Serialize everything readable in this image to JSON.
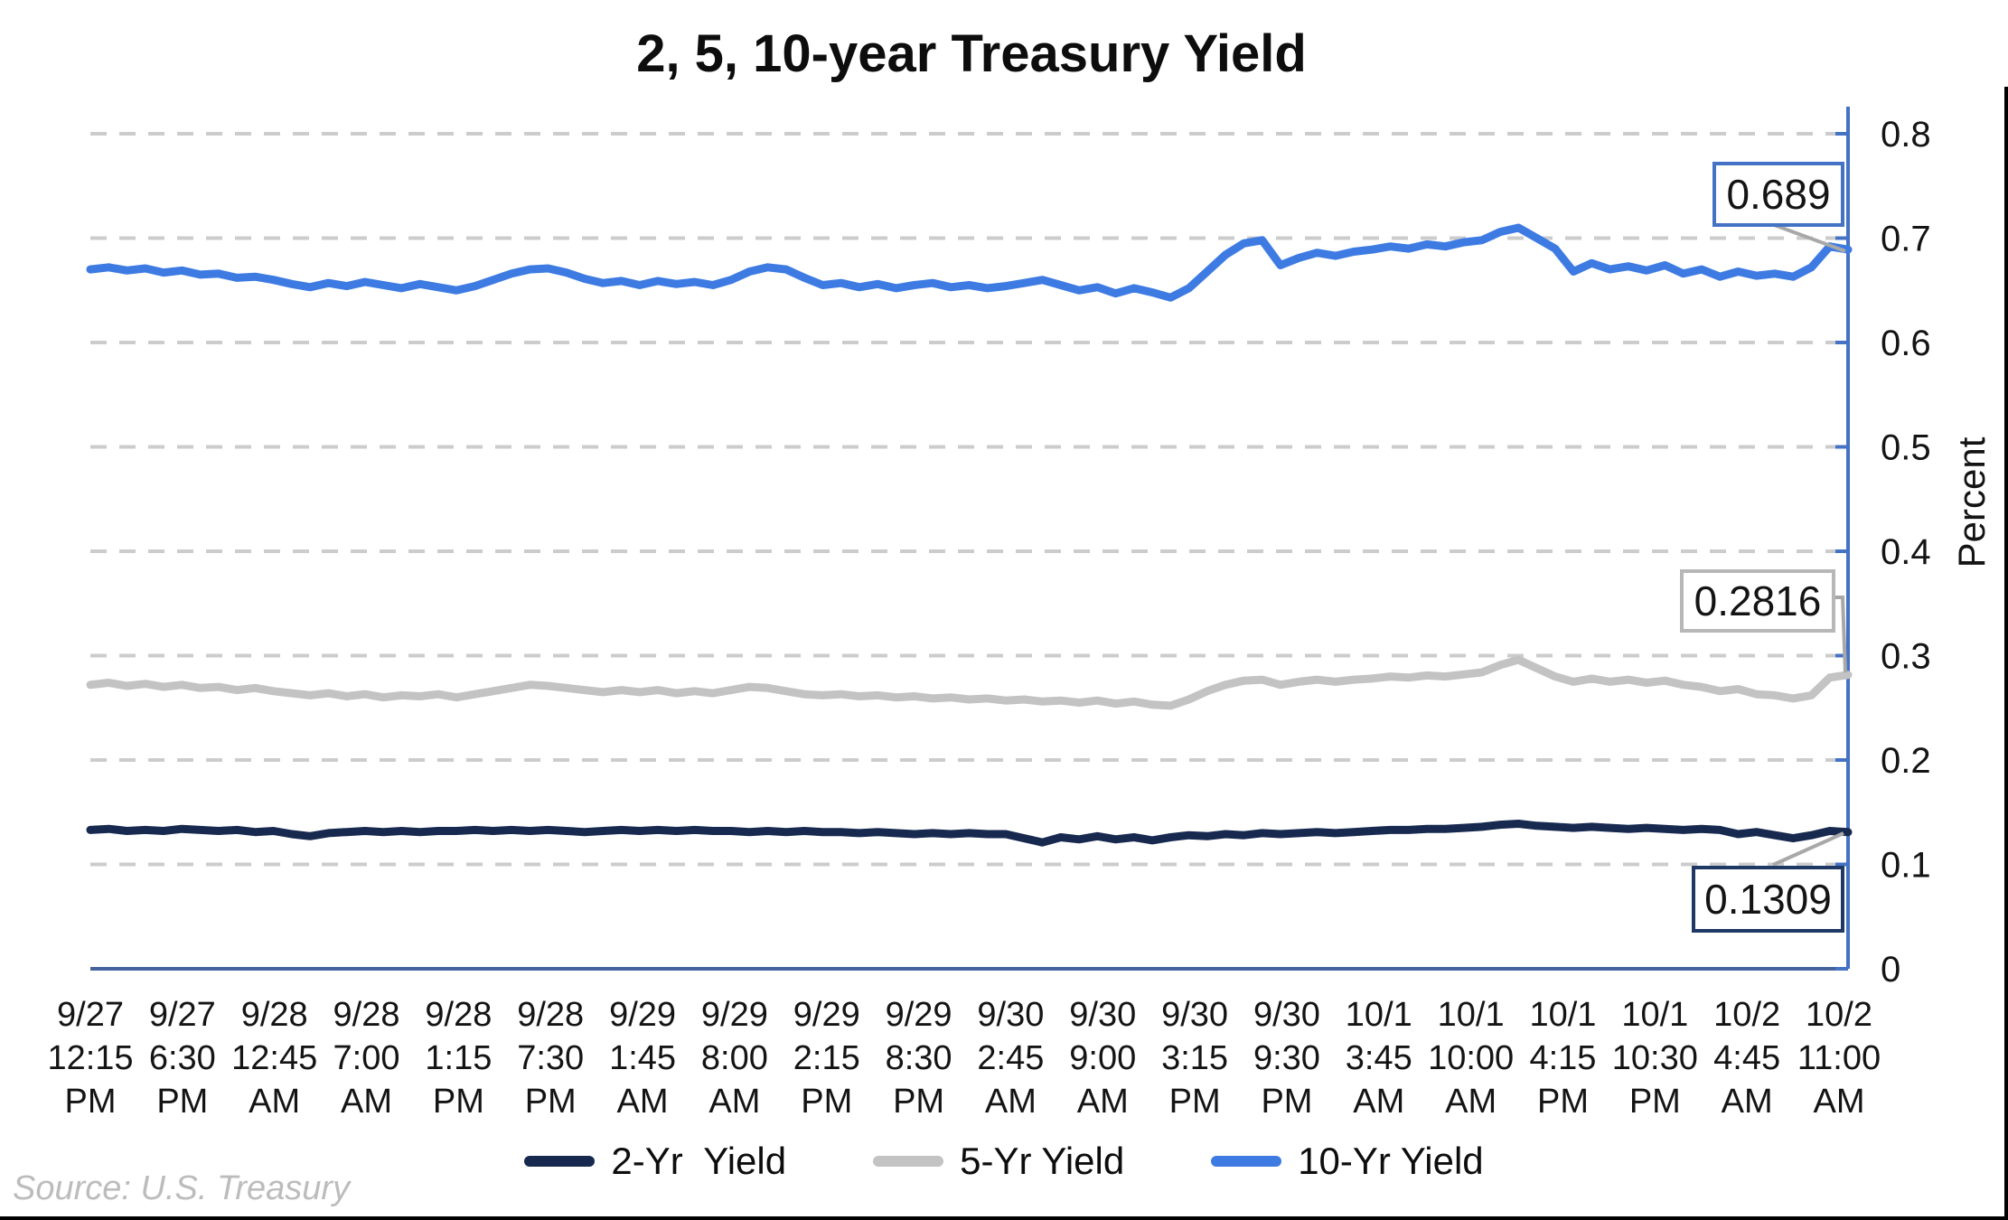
{
  "title": "2, 5, 10-year Treasury Yield",
  "source": "Source: U.S. Treasury",
  "colors": {
    "gridline": "#cccccc",
    "axis_right": "#4472c4",
    "axis_bottom": "#44639c",
    "leader_line": "#a8a8a8",
    "series_2yr": "#17294f",
    "series_5yr": "#c3c3c3",
    "series_10yr": "#3d7be3"
  },
  "chart_data": {
    "type": "line",
    "title": "2, 5, 10-year Treasury Yield",
    "xlabel": "",
    "ylabel": "Percent",
    "ylim": [
      0,
      0.8
    ],
    "yticks": [
      "0",
      "0.1",
      "0.2",
      "0.3",
      "0.4",
      "0.5",
      "0.6",
      "0.7",
      "0.8"
    ],
    "grid": "horizontal dashed",
    "legend_position": "bottom",
    "x_labels": [
      "9/27\n12:15\nPM",
      "9/27\n6:30\nPM",
      "9/28\n12:45\nAM",
      "9/28\n7:00\nAM",
      "9/28\n1:15\nPM",
      "9/28\n7:30\nPM",
      "9/29\n1:45\nAM",
      "9/29\n8:00\nAM",
      "9/29\n2:15\nPM",
      "9/29\n8:30\nPM",
      "9/30\n2:45\nAM",
      "9/30\n9:00\nAM",
      "9/30\n3:15\nPM",
      "9/30\n9:30\nPM",
      "10/1\n3:45\nAM",
      "10/1\n10:00\nAM",
      "10/1\n4:15\nPM",
      "10/1\n10:30\nPM",
      "10/2\n4:45\nAM",
      "10/2\n11:00\nAM"
    ],
    "series": [
      {
        "name": "2-Yr  Yield",
        "color": "#17294f",
        "last_value": 0.1309,
        "values": [
          0.133,
          0.134,
          0.132,
          0.133,
          0.132,
          0.134,
          0.133,
          0.132,
          0.133,
          0.131,
          0.132,
          0.129,
          0.127,
          0.13,
          0.131,
          0.132,
          0.131,
          0.132,
          0.131,
          0.132,
          0.132,
          0.133,
          0.132,
          0.133,
          0.132,
          0.133,
          0.132,
          0.131,
          0.132,
          0.133,
          0.132,
          0.133,
          0.132,
          0.133,
          0.132,
          0.132,
          0.131,
          0.132,
          0.131,
          0.132,
          0.131,
          0.131,
          0.13,
          0.131,
          0.13,
          0.129,
          0.13,
          0.129,
          0.13,
          0.129,
          0.129,
          0.125,
          0.121,
          0.126,
          0.124,
          0.127,
          0.124,
          0.126,
          0.123,
          0.126,
          0.128,
          0.127,
          0.129,
          0.128,
          0.13,
          0.129,
          0.13,
          0.131,
          0.13,
          0.131,
          0.132,
          0.133,
          0.133,
          0.134,
          0.134,
          0.135,
          0.136,
          0.138,
          0.139,
          0.137,
          0.136,
          0.135,
          0.136,
          0.135,
          0.134,
          0.135,
          0.134,
          0.133,
          0.134,
          0.133,
          0.129,
          0.131,
          0.128,
          0.125,
          0.128,
          0.132,
          0.1309
        ]
      },
      {
        "name": "5-Yr Yield",
        "color": "#c3c3c3",
        "last_value": 0.2816,
        "values": [
          0.272,
          0.274,
          0.271,
          0.273,
          0.27,
          0.272,
          0.269,
          0.27,
          0.267,
          0.269,
          0.266,
          0.264,
          0.262,
          0.264,
          0.261,
          0.263,
          0.26,
          0.262,
          0.261,
          0.263,
          0.26,
          0.263,
          0.266,
          0.269,
          0.272,
          0.271,
          0.269,
          0.267,
          0.265,
          0.267,
          0.265,
          0.267,
          0.264,
          0.266,
          0.264,
          0.267,
          0.27,
          0.269,
          0.266,
          0.263,
          0.262,
          0.263,
          0.261,
          0.262,
          0.26,
          0.261,
          0.259,
          0.26,
          0.258,
          0.259,
          0.257,
          0.258,
          0.256,
          0.257,
          0.255,
          0.257,
          0.254,
          0.256,
          0.253,
          0.252,
          0.258,
          0.266,
          0.272,
          0.276,
          0.277,
          0.272,
          0.275,
          0.277,
          0.275,
          0.277,
          0.278,
          0.28,
          0.279,
          0.281,
          0.28,
          0.282,
          0.284,
          0.291,
          0.296,
          0.288,
          0.28,
          0.275,
          0.278,
          0.275,
          0.277,
          0.274,
          0.276,
          0.272,
          0.27,
          0.266,
          0.268,
          0.263,
          0.262,
          0.259,
          0.262,
          0.279,
          0.2816
        ]
      },
      {
        "name": "10-Yr Yield",
        "color": "#3d7be3",
        "last_value": 0.689,
        "values": [
          0.67,
          0.672,
          0.669,
          0.671,
          0.667,
          0.669,
          0.665,
          0.666,
          0.662,
          0.663,
          0.66,
          0.656,
          0.653,
          0.657,
          0.654,
          0.658,
          0.655,
          0.652,
          0.656,
          0.653,
          0.65,
          0.654,
          0.66,
          0.666,
          0.67,
          0.671,
          0.667,
          0.661,
          0.657,
          0.659,
          0.655,
          0.659,
          0.656,
          0.658,
          0.655,
          0.66,
          0.668,
          0.672,
          0.67,
          0.662,
          0.655,
          0.657,
          0.653,
          0.656,
          0.652,
          0.655,
          0.657,
          0.653,
          0.655,
          0.652,
          0.654,
          0.657,
          0.66,
          0.655,
          0.65,
          0.653,
          0.647,
          0.652,
          0.648,
          0.643,
          0.652,
          0.668,
          0.684,
          0.695,
          0.698,
          0.674,
          0.681,
          0.686,
          0.683,
          0.687,
          0.689,
          0.692,
          0.69,
          0.694,
          0.692,
          0.696,
          0.698,
          0.706,
          0.71,
          0.7,
          0.69,
          0.668,
          0.676,
          0.67,
          0.673,
          0.669,
          0.674,
          0.666,
          0.67,
          0.663,
          0.668,
          0.664,
          0.666,
          0.663,
          0.672,
          0.692,
          0.689
        ]
      }
    ],
    "annotations": [
      {
        "series": "10-Yr Yield",
        "label": "0.689"
      },
      {
        "series": "5-Yr Yield",
        "label": "0.2816"
      },
      {
        "series": "2-Yr Yield",
        "label": "0.1309"
      }
    ]
  }
}
